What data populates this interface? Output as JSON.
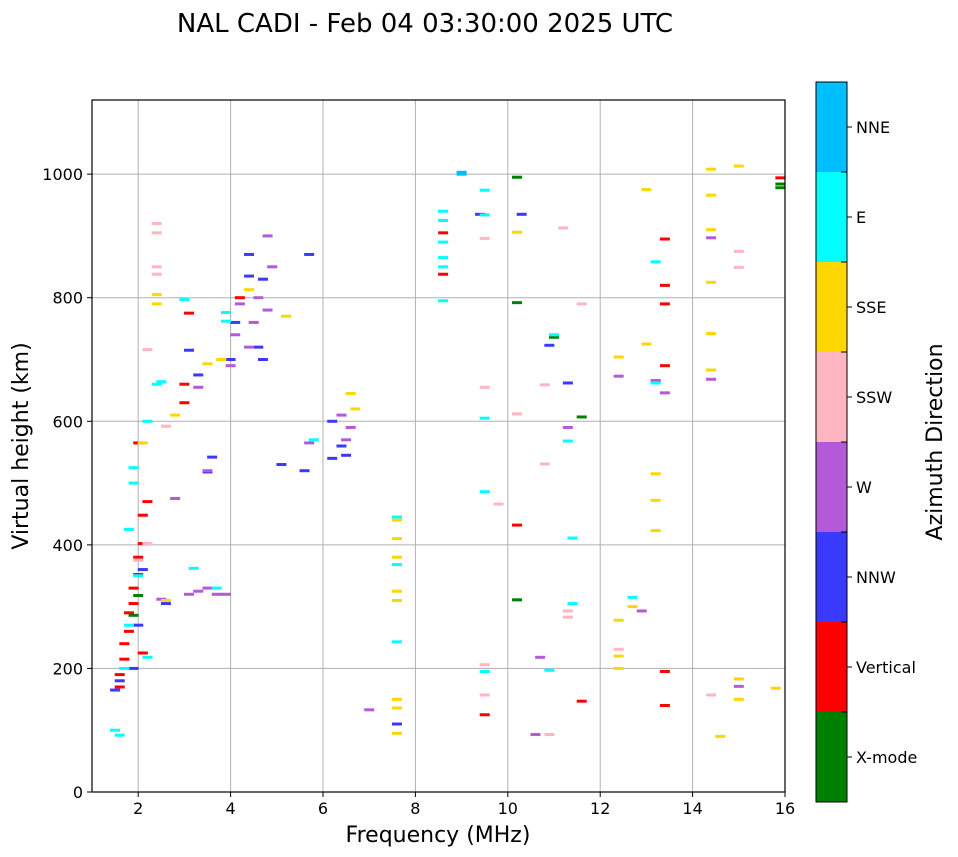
{
  "chart_data": {
    "type": "scatter",
    "title": "NAL CADI - Feb 04 03:30:00 2025 UTC",
    "xlabel": "Frequency (MHz)",
    "ylabel": "Virtual height (km)",
    "xlim": [
      1,
      16
    ],
    "ylim": [
      0,
      1120
    ],
    "xticks": [
      2,
      4,
      6,
      8,
      10,
      12,
      14,
      16
    ],
    "yticks": [
      0,
      200,
      400,
      600,
      800,
      1000
    ],
    "grid": true,
    "colorbar": {
      "title": "Azimuth Direction",
      "categories": [
        {
          "name": "X-mode",
          "color": "#008000"
        },
        {
          "name": "Vertical",
          "color": "#ff0000"
        },
        {
          "name": "NNW",
          "color": "#3a3aff"
        },
        {
          "name": "W",
          "color": "#b45ad8"
        },
        {
          "name": "SSW",
          "color": "#ffb6c1"
        },
        {
          "name": "SSE",
          "color": "#ffd700"
        },
        {
          "name": "E",
          "color": "#00ffff"
        },
        {
          "name": "NNE",
          "color": "#00bfff"
        }
      ]
    },
    "series": [
      {
        "name": "X-mode",
        "points": [
          [
            10.2,
            995
          ],
          [
            10.2,
            792
          ],
          [
            11.6,
            607
          ],
          [
            10.2,
            311
          ],
          [
            15.9,
            984
          ],
          [
            15.9,
            978
          ],
          [
            11.0,
            736
          ],
          [
            2.0,
            318
          ],
          [
            1.9,
            286
          ]
        ]
      },
      {
        "name": "Vertical",
        "points": [
          [
            1.6,
            170
          ],
          [
            1.6,
            190
          ],
          [
            1.7,
            215
          ],
          [
            1.7,
            240
          ],
          [
            1.8,
            260
          ],
          [
            1.8,
            290
          ],
          [
            1.9,
            305
          ],
          [
            1.9,
            330
          ],
          [
            2.0,
            352
          ],
          [
            2.0,
            380
          ],
          [
            2.1,
            402
          ],
          [
            2.1,
            448
          ],
          [
            2.2,
            470
          ],
          [
            2.0,
            565
          ],
          [
            3.0,
            630
          ],
          [
            3.0,
            660
          ],
          [
            3.1,
            775
          ],
          [
            4.2,
            800
          ],
          [
            8.6,
            905
          ],
          [
            8.6,
            838
          ],
          [
            9.5,
            125
          ],
          [
            10.2,
            432
          ],
          [
            11.6,
            147
          ],
          [
            13.4,
            895
          ],
          [
            13.4,
            820
          ],
          [
            13.4,
            790
          ],
          [
            13.4,
            690
          ],
          [
            13.4,
            195
          ],
          [
            13.4,
            140
          ],
          [
            15.9,
            994
          ],
          [
            2.1,
            225
          ]
        ]
      },
      {
        "name": "NNW",
        "points": [
          [
            1.5,
            165
          ],
          [
            1.6,
            180
          ],
          [
            1.9,
            200
          ],
          [
            2.0,
            270
          ],
          [
            2.1,
            360
          ],
          [
            3.1,
            715
          ],
          [
            3.3,
            675
          ],
          [
            3.6,
            542
          ],
          [
            3.5,
            518
          ],
          [
            4.0,
            700
          ],
          [
            4.1,
            760
          ],
          [
            4.4,
            835
          ],
          [
            4.4,
            870
          ],
          [
            4.7,
            830
          ],
          [
            4.6,
            720
          ],
          [
            4.7,
            700
          ],
          [
            5.1,
            530
          ],
          [
            5.6,
            520
          ],
          [
            5.7,
            870
          ],
          [
            6.2,
            600
          ],
          [
            6.4,
            560
          ],
          [
            6.5,
            545
          ],
          [
            6.2,
            540
          ],
          [
            7.6,
            110
          ],
          [
            9.4,
            935
          ],
          [
            10.3,
            935
          ],
          [
            10.9,
            723
          ],
          [
            11.3,
            662
          ],
          [
            13.2,
            665
          ],
          [
            2.6,
            305
          ]
        ]
      },
      {
        "name": "W",
        "points": [
          [
            2.5,
            312
          ],
          [
            2.8,
            475
          ],
          [
            3.1,
            320
          ],
          [
            3.3,
            325
          ],
          [
            3.5,
            330
          ],
          [
            3.7,
            320
          ],
          [
            3.9,
            320
          ],
          [
            3.5,
            520
          ],
          [
            4.0,
            690
          ],
          [
            4.1,
            740
          ],
          [
            4.2,
            790
          ],
          [
            4.4,
            720
          ],
          [
            4.5,
            760
          ],
          [
            4.6,
            800
          ],
          [
            4.8,
            900
          ],
          [
            4.9,
            850
          ],
          [
            4.8,
            780
          ],
          [
            5.7,
            565
          ],
          [
            6.4,
            610
          ],
          [
            6.6,
            590
          ],
          [
            6.5,
            570
          ],
          [
            3.3,
            655
          ],
          [
            7.0,
            133
          ],
          [
            12.4,
            673
          ],
          [
            12.9,
            293
          ],
          [
            13.2,
            666
          ],
          [
            13.4,
            646
          ],
          [
            14.4,
            897
          ],
          [
            14.4,
            668
          ],
          [
            15.0,
            171
          ],
          [
            10.6,
            93
          ],
          [
            10.7,
            218
          ],
          [
            11.3,
            590
          ]
        ]
      },
      {
        "name": "SSW",
        "points": [
          [
            2.4,
            920
          ],
          [
            2.4,
            905
          ],
          [
            2.4,
            850
          ],
          [
            2.4,
            838
          ],
          [
            2.2,
            402
          ],
          [
            2.0,
            375
          ],
          [
            2.2,
            716
          ],
          [
            2.6,
            592
          ],
          [
            9.5,
            896
          ],
          [
            9.5,
            655
          ],
          [
            9.5,
            206
          ],
          [
            9.5,
            157
          ],
          [
            9.8,
            466
          ],
          [
            10.2,
            612
          ],
          [
            10.8,
            659
          ],
          [
            10.8,
            531
          ],
          [
            10.9,
            93
          ],
          [
            11.2,
            913
          ],
          [
            11.3,
            293
          ],
          [
            11.3,
            283
          ],
          [
            11.6,
            790
          ],
          [
            12.4,
            231
          ],
          [
            15.0,
            875
          ],
          [
            15.0,
            849
          ],
          [
            14.4,
            157
          ]
        ]
      },
      {
        "name": "SSE",
        "points": [
          [
            2.1,
            565
          ],
          [
            2.4,
            805
          ],
          [
            2.4,
            790
          ],
          [
            2.6,
            310
          ],
          [
            2.8,
            610
          ],
          [
            3.5,
            693
          ],
          [
            3.8,
            700
          ],
          [
            4.4,
            813
          ],
          [
            5.2,
            770
          ],
          [
            6.6,
            645
          ],
          [
            6.7,
            620
          ],
          [
            7.6,
            440
          ],
          [
            7.6,
            410
          ],
          [
            7.6,
            380
          ],
          [
            7.6,
            325
          ],
          [
            7.6,
            310
          ],
          [
            7.6,
            150
          ],
          [
            7.6,
            136
          ],
          [
            7.6,
            95
          ],
          [
            10.2,
            906
          ],
          [
            12.4,
            704
          ],
          [
            12.4,
            278
          ],
          [
            12.4,
            220
          ],
          [
            12.4,
            200
          ],
          [
            12.7,
            300
          ],
          [
            13.0,
            975
          ],
          [
            13.0,
            725
          ],
          [
            13.2,
            515
          ],
          [
            13.2,
            472
          ],
          [
            13.2,
            423
          ],
          [
            14.4,
            1008
          ],
          [
            14.4,
            966
          ],
          [
            14.4,
            910
          ],
          [
            14.4,
            825
          ],
          [
            14.4,
            742
          ],
          [
            14.4,
            683
          ],
          [
            14.6,
            90
          ],
          [
            15.0,
            1013
          ],
          [
            15.0,
            183
          ],
          [
            15.0,
            150
          ],
          [
            15.8,
            168
          ]
        ]
      },
      {
        "name": "E",
        "points": [
          [
            1.5,
            100
          ],
          [
            1.6,
            92
          ],
          [
            1.7,
            200
          ],
          [
            1.8,
            270
          ],
          [
            1.9,
            500
          ],
          [
            1.9,
            525
          ],
          [
            1.8,
            425
          ],
          [
            2.0,
            350
          ],
          [
            2.2,
            218
          ],
          [
            2.2,
            600
          ],
          [
            2.4,
            660
          ],
          [
            2.5,
            664
          ],
          [
            3.0,
            797
          ],
          [
            3.2,
            362
          ],
          [
            3.7,
            330
          ],
          [
            3.9,
            776
          ],
          [
            3.9,
            762
          ],
          [
            5.8,
            570
          ],
          [
            7.6,
            445
          ],
          [
            7.6,
            368
          ],
          [
            7.6,
            243
          ],
          [
            8.6,
            940
          ],
          [
            8.6,
            925
          ],
          [
            8.6,
            890
          ],
          [
            8.6,
            865
          ],
          [
            8.6,
            850
          ],
          [
            8.6,
            795
          ],
          [
            9.5,
            974
          ],
          [
            9.5,
            934
          ],
          [
            9.5,
            605
          ],
          [
            9.5,
            486
          ],
          [
            9.5,
            195
          ],
          [
            10.9,
            197
          ],
          [
            11.0,
            740
          ],
          [
            11.3,
            568
          ],
          [
            11.4,
            411
          ],
          [
            11.4,
            305
          ],
          [
            12.7,
            315
          ],
          [
            13.2,
            858
          ],
          [
            13.2,
            662
          ]
        ]
      },
      {
        "name": "NNE",
        "points": [
          [
            9.0,
            1003
          ],
          [
            9.0,
            1000
          ]
        ]
      }
    ]
  }
}
